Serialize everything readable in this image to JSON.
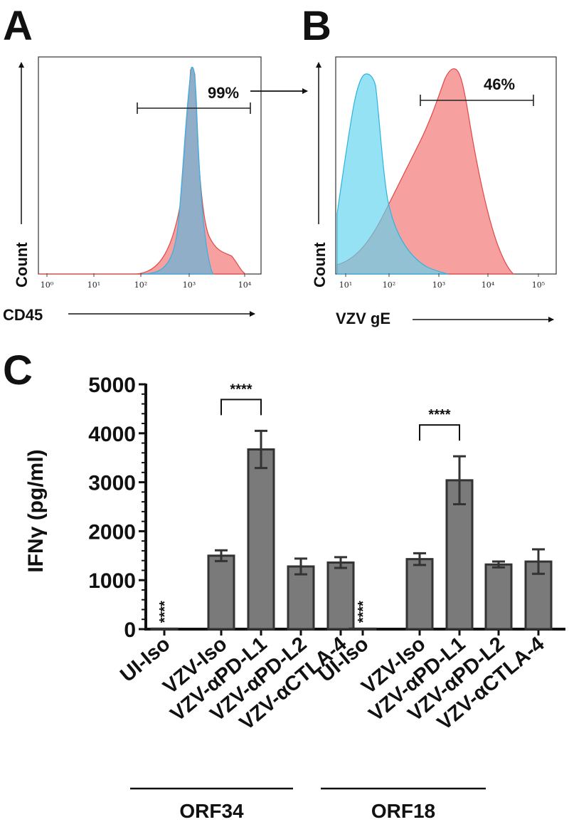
{
  "panels": {
    "A": {
      "letter": "A",
      "gate_label": "99%",
      "x_axis_label": "CD45",
      "y_axis_label": "Count",
      "x_ticks": [
        "10⁰",
        "10¹",
        "10²",
        "10³",
        "10⁴"
      ],
      "histogram_colors": {
        "infected": "#f4908f",
        "control": "#7fb0d0"
      }
    },
    "B": {
      "letter": "B",
      "gate_label": "46%",
      "x_axis_label": "VZV gE",
      "y_axis_label": "Count",
      "x_ticks": [
        "10¹",
        "10²",
        "10³",
        "10⁴",
        "10⁵"
      ],
      "histogram_colors": {
        "infected": "#f4908f",
        "control": "#5ed3ef"
      }
    },
    "C": {
      "letter": "C",
      "groups": [
        {
          "name": "ORF34",
          "categories": [
            "UI-Iso",
            "VZV-Iso",
            "VZV-αPD-L1",
            "VZV-αPD-L2",
            "VZV-αCTLA-4"
          ]
        },
        {
          "name": "ORF18",
          "categories": [
            "UI-Iso",
            "VZV-Iso",
            "VZV-αPD-L1",
            "VZV-αPD-L2",
            "VZV-αCTLA-4"
          ]
        }
      ],
      "significance": "****"
    }
  },
  "chart_data": {
    "type": "bar",
    "title": "",
    "xlabel": "",
    "ylabel": "IFNγ (pg/ml)",
    "ylim": [
      0,
      5000
    ],
    "yticks": [
      0,
      1000,
      2000,
      3000,
      4000,
      5000
    ],
    "categories": [
      "UI-Iso",
      "VZV-Iso",
      "VZV-αPD-L1",
      "VZV-αPD-L2",
      "VZV-αCTLA-4",
      "UI-Iso",
      "VZV-Iso",
      "VZV-αPD-L1",
      "VZV-αPD-L2",
      "VZV-αCTLA-4"
    ],
    "series": [
      {
        "name": "IFNγ",
        "values": [
          10,
          1500,
          3670,
          1280,
          1360,
          10,
          1430,
          3040,
          1320,
          1380
        ],
        "errors": [
          0,
          110,
          380,
          160,
          110,
          0,
          120,
          490,
          60,
          250
        ]
      }
    ],
    "group_labels": [
      "ORF34",
      "ORF34",
      "ORF34",
      "ORF34",
      "ORF34",
      "ORF18",
      "ORF18",
      "ORF18",
      "ORF18",
      "ORF18"
    ],
    "annotations": [
      {
        "type": "star",
        "index": 0,
        "text": "****"
      },
      {
        "type": "star",
        "index": 5,
        "text": "****"
      },
      {
        "type": "bracket",
        "from": 1,
        "to": 2,
        "text": "****"
      },
      {
        "type": "bracket",
        "from": 6,
        "to": 7,
        "text": "****"
      }
    ],
    "bar_color": "#7a7a7a"
  }
}
